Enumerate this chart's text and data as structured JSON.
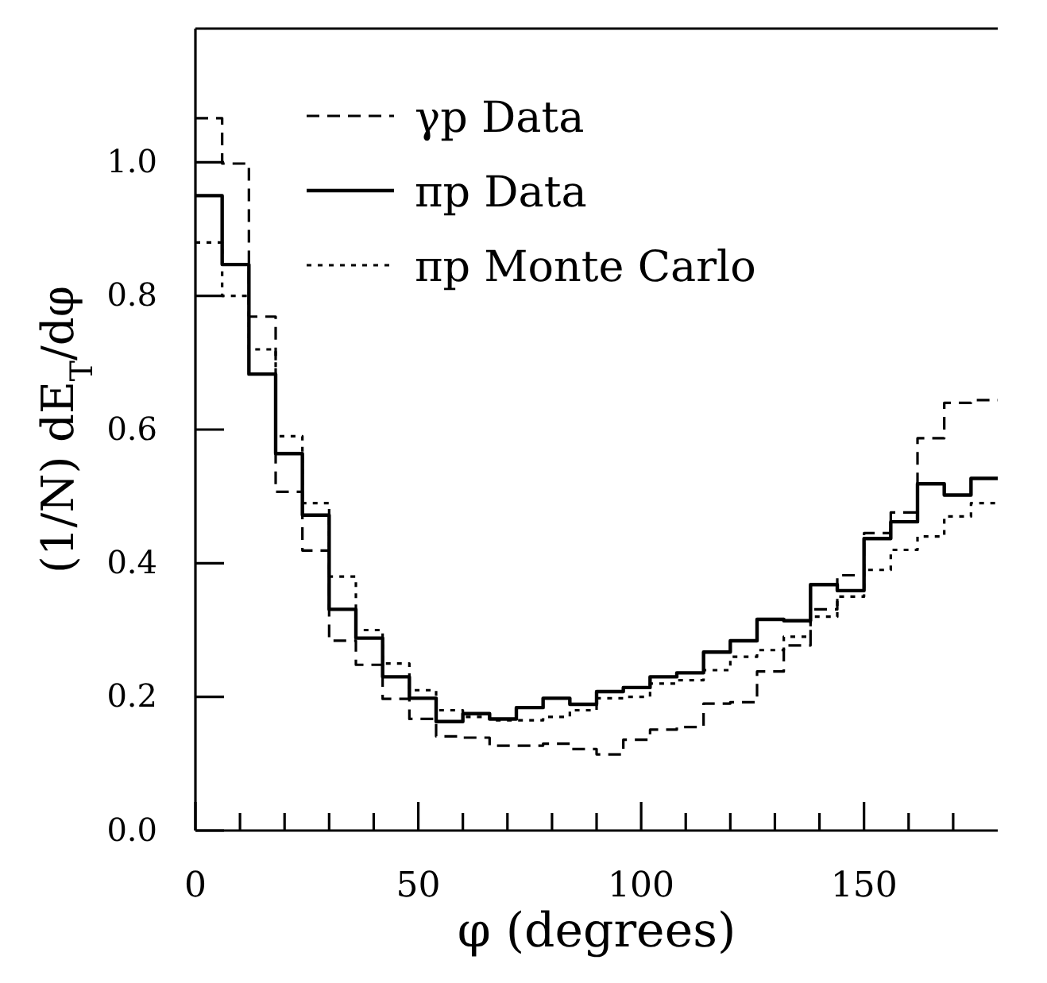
{
  "chart_data": {
    "type": "step",
    "xlabel": "φ (degrees)",
    "ylabel": "(1/N) dE$_{T}$/dφ",
    "x": [
      0,
      6,
      12,
      18,
      24,
      30,
      36,
      42,
      48,
      54,
      60,
      66,
      72,
      78,
      84,
      90,
      96,
      102,
      108,
      114,
      120,
      126,
      132,
      138,
      144,
      150,
      156,
      162,
      168,
      174,
      180
    ],
    "series": [
      {
        "name": "γp Data",
        "color": "#000000",
        "line_style": "dashed",
        "values": [
          1.066,
          0.998,
          0.769,
          0.507,
          0.419,
          0.284,
          0.248,
          0.197,
          0.167,
          0.141,
          0.139,
          0.127,
          0.127,
          0.13,
          0.122,
          0.114,
          0.136,
          0.151,
          0.155,
          0.19,
          0.192,
          0.238,
          0.277,
          0.331,
          0.382,
          0.445,
          0.476,
          0.587,
          0.64,
          0.644,
          0.644
        ]
      },
      {
        "name": "πp Data",
        "color": "#000000",
        "line_style": "solid",
        "values": [
          0.95,
          0.847,
          0.683,
          0.564,
          0.472,
          0.331,
          0.288,
          0.23,
          0.198,
          0.163,
          0.175,
          0.167,
          0.184,
          0.198,
          0.189,
          0.208,
          0.214,
          0.23,
          0.236,
          0.267,
          0.284,
          0.316,
          0.314,
          0.368,
          0.359,
          0.437,
          0.462,
          0.519,
          0.502,
          0.527,
          0.527
        ]
      },
      {
        "name": "πp Monte Carlo",
        "color": "#000000",
        "line_style": "dotted",
        "values": [
          0.88,
          0.8,
          0.72,
          0.59,
          0.49,
          0.38,
          0.3,
          0.25,
          0.21,
          0.18,
          0.17,
          0.165,
          0.165,
          0.17,
          0.18,
          0.198,
          0.2,
          0.22,
          0.225,
          0.24,
          0.26,
          0.27,
          0.29,
          0.32,
          0.35,
          0.39,
          0.42,
          0.44,
          0.47,
          0.49,
          0.49
        ]
      }
    ],
    "xlim": [
      0,
      180
    ],
    "ylim": [
      0,
      1.2
    ],
    "xticks": [
      0,
      {
        "value": 10,
        "label": null
      },
      {
        "value": 20,
        "label": null
      },
      {
        "value": 30,
        "label": null
      },
      {
        "value": 40,
        "label": null
      },
      50,
      {
        "value": 60,
        "label": null
      },
      {
        "value": 70,
        "label": null
      },
      {
        "value": 80,
        "label": null
      },
      {
        "value": 90,
        "label": null
      },
      100,
      {
        "value": 110,
        "label": null
      },
      {
        "value": 120,
        "label": null
      },
      {
        "value": 130,
        "label": null
      },
      {
        "value": 140,
        "label": null
      },
      150,
      {
        "value": 160,
        "label": null
      },
      {
        "value": 170,
        "label": null
      }
    ],
    "yticks": [
      {
        "value": 0,
        "label": "0.0"
      },
      {
        "value": 0.2,
        "label": "0.2"
      },
      {
        "value": 0.4,
        "label": "0.4"
      },
      {
        "value": 0.6,
        "label": "0.6"
      },
      {
        "value": 0.8,
        "label": "0.8"
      },
      {
        "value": 1.0,
        "label": "1.0"
      }
    ],
    "legend": "top",
    "grid": false
  }
}
